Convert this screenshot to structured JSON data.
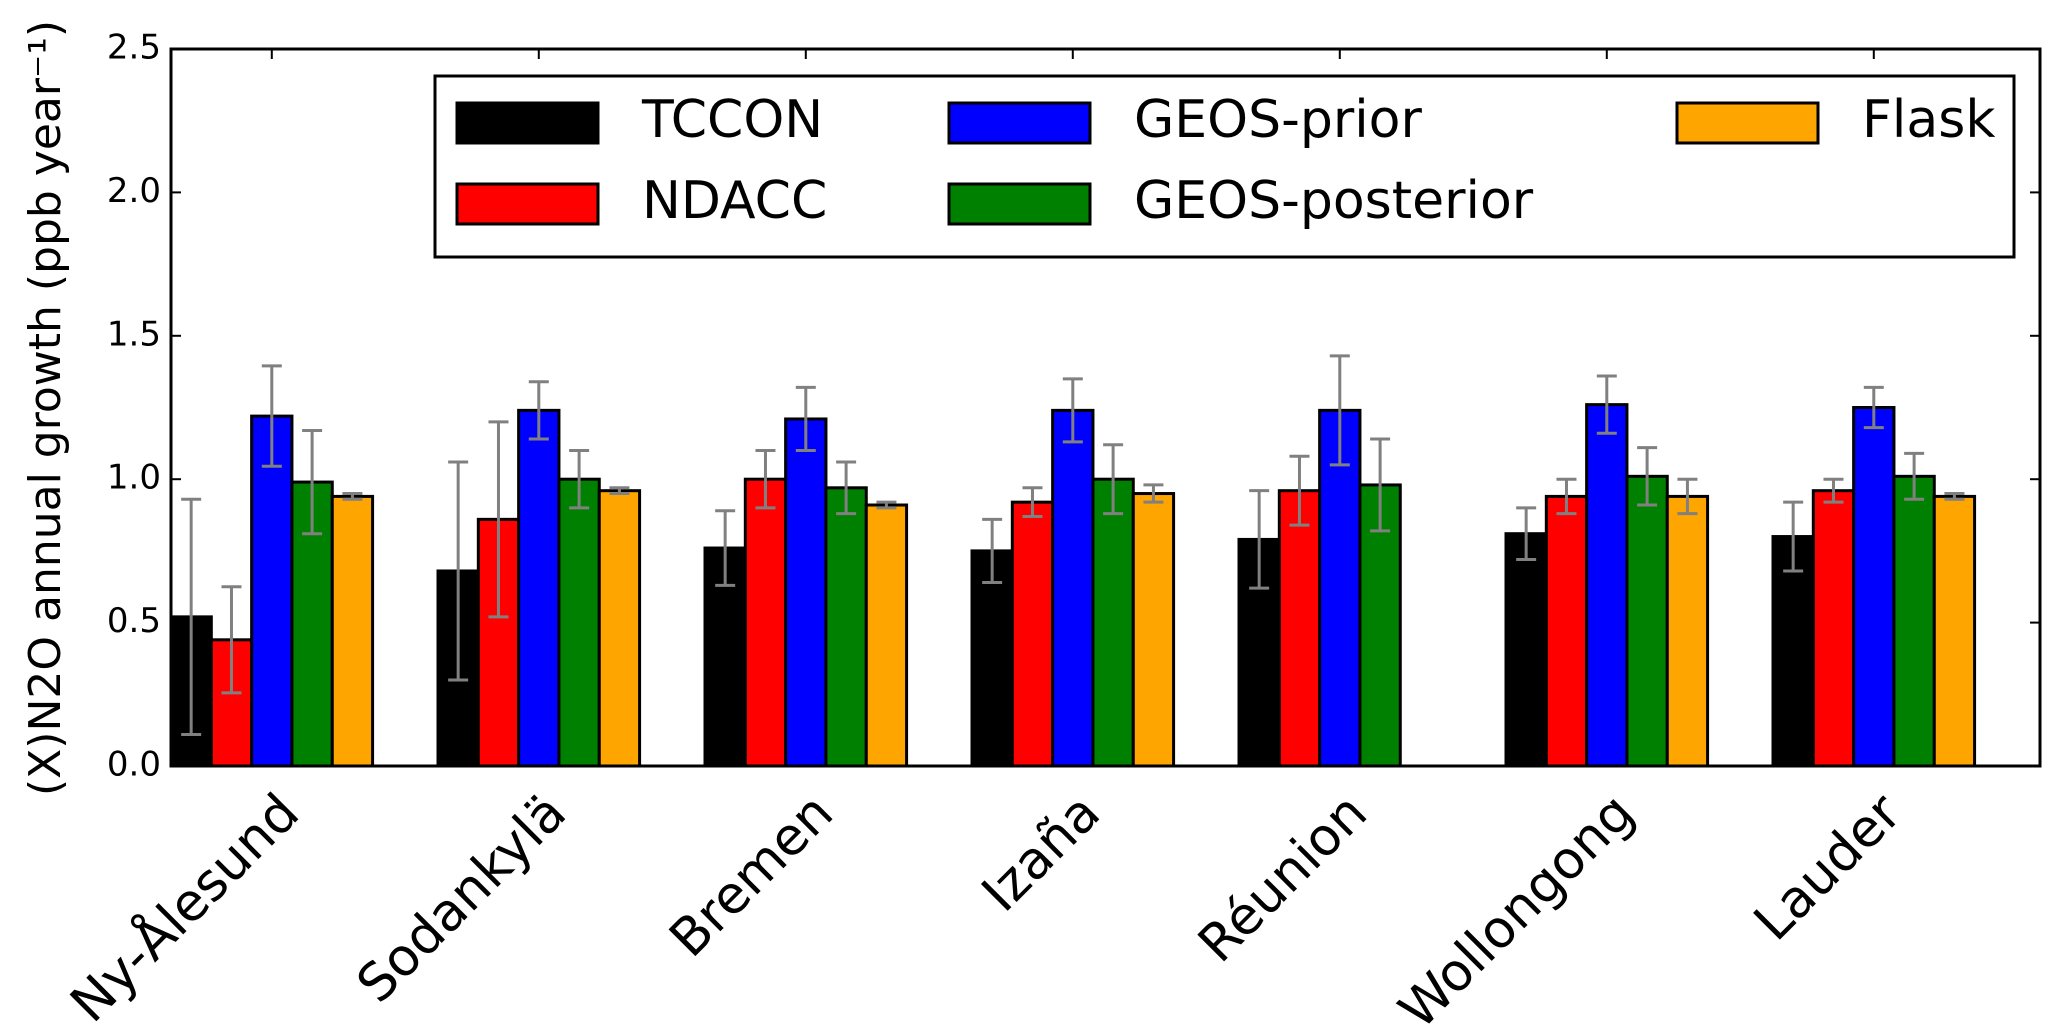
{
  "chart_data": {
    "type": "bar",
    "y_label": "(X)N2O annual growth (ppb year⁻¹)",
    "categories": [
      "Ny-Ålesund",
      "Sodankylä",
      "Bremen",
      "Izaña",
      "Réunion",
      "Wollongong",
      "Lauder"
    ],
    "series": [
      {
        "name": "TCCON",
        "color": "#000000",
        "values": [
          0.52,
          0.68,
          0.76,
          0.75,
          0.79,
          0.81,
          0.8
        ],
        "errors": [
          0.41,
          0.38,
          0.13,
          0.11,
          0.17,
          0.09,
          0.12
        ]
      },
      {
        "name": "NDACC",
        "color": "#ff0000",
        "values": [
          0.44,
          0.86,
          1.0,
          0.92,
          0.96,
          0.94,
          0.96
        ],
        "errors": [
          0.185,
          0.34,
          0.1,
          0.05,
          0.12,
          0.06,
          0.04
        ]
      },
      {
        "name": "GEOS-prior",
        "color": "#0000ff",
        "values": [
          1.22,
          1.24,
          1.21,
          1.24,
          1.24,
          1.26,
          1.25
        ],
        "errors": [
          0.175,
          0.1,
          0.11,
          0.11,
          0.19,
          0.1,
          0.07
        ]
      },
      {
        "name": "GEOS-posterior",
        "color": "#008000",
        "values": [
          0.99,
          1.0,
          0.97,
          1.0,
          0.98,
          1.01,
          1.01
        ],
        "errors": [
          0.18,
          0.1,
          0.09,
          0.12,
          0.16,
          0.1,
          0.08
        ]
      },
      {
        "name": "Flask",
        "color": "#ffa500",
        "values": [
          0.94,
          0.96,
          0.91,
          0.95,
          null,
          0.94,
          0.94
        ],
        "errors": [
          0.01,
          0.01,
          0.01,
          0.03,
          null,
          0.06,
          0.01
        ]
      }
    ],
    "ylim": [
      0,
      2.5
    ],
    "yticks": [
      {
        "value": 0,
        "label": "0.0"
      },
      0.5,
      {
        "value": 1,
        "label": "1.0"
      },
      1.5,
      {
        "value": 2,
        "label": "2.0"
      },
      2.5
    ],
    "error_color": "#808080"
  }
}
